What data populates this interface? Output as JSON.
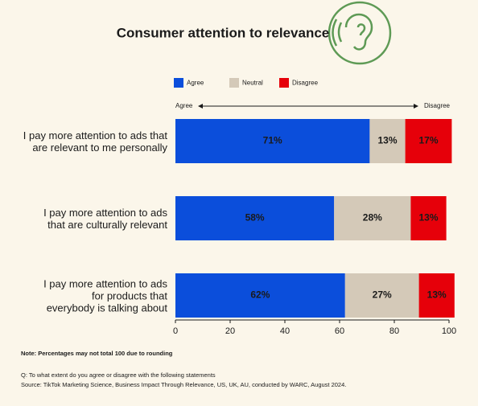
{
  "chart_data": {
    "type": "stacked-bar-horizontal",
    "title": "Consumer attention to relevance",
    "categories": [
      "I pay more attention to ads that\nare relevant to me personally",
      "I pay more attention to ads\nthat are culturally relevant",
      "I pay more attention to ads\nfor products that\neverybody is talking about"
    ],
    "series": [
      {
        "name": "Agree",
        "color": "#0b4edb",
        "label_color": "#ffffff",
        "values": [
          71,
          58,
          62
        ],
        "value_labels": [
          "71%",
          "58%",
          "62%"
        ]
      },
      {
        "name": "Neutral",
        "color": "#d4c9b8",
        "label_color": "#1a1a1a",
        "values": [
          13,
          28,
          27
        ],
        "value_labels": [
          "13%",
          "28%",
          "27%"
        ]
      },
      {
        "name": "Disagree",
        "color": "#e6000a",
        "label_color": "#ffffff",
        "values": [
          17,
          13,
          13
        ],
        "value_labels": [
          "17%",
          "13%",
          "13%"
        ]
      }
    ],
    "scale_labels": [
      "Agree",
      "Disagree"
    ],
    "xlim": [
      0,
      100
    ],
    "xticks": [
      0,
      20,
      40,
      60,
      80,
      100
    ],
    "note": "Note: Percentages may not total 100 due to rounding",
    "question": "Q: To what extent do you agree or disagree with the following statements",
    "source": "Source: TikTok Marketing Science, Business Impact Through Relevance, US, UK, AU, conducted by WARC, August 2024."
  }
}
